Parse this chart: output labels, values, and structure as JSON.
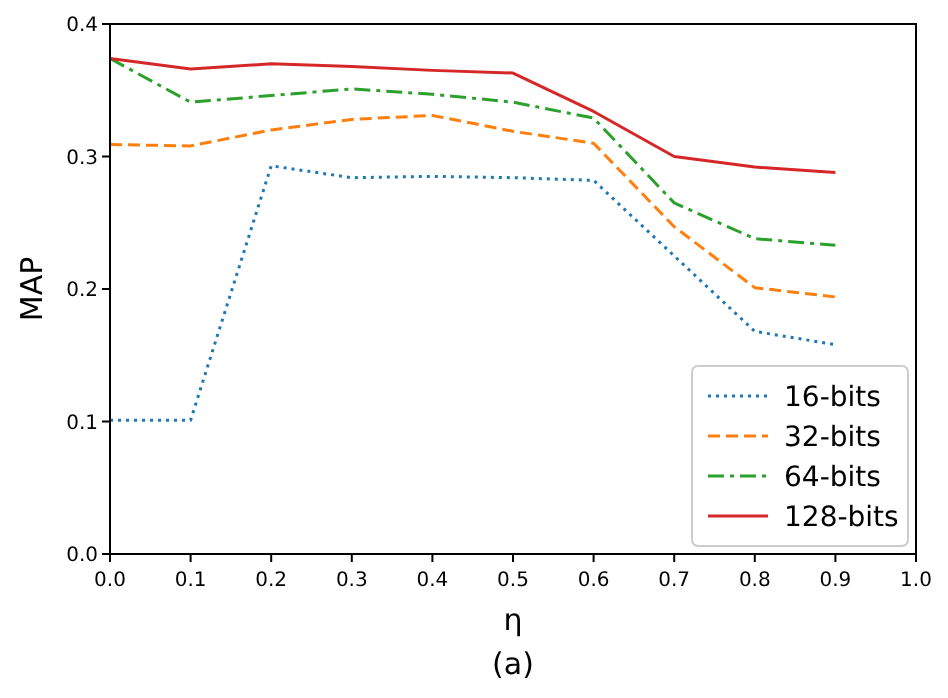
{
  "chart_data": {
    "type": "line",
    "xlabel": "η",
    "ylabel": "MAP",
    "annotations": [
      "(a)"
    ],
    "x": [
      0,
      0.1,
      0.2,
      0.3,
      0.4,
      0.5,
      0.6,
      0.7,
      0.8,
      0.9
    ],
    "xlim": [
      0,
      1
    ],
    "xticks": [
      {
        "value": 0,
        "label": "0.0"
      },
      0.1,
      0.2,
      0.3,
      0.4,
      0.5,
      0.6,
      0.7,
      0.8,
      0.9,
      {
        "value": 1,
        "label": "1.0"
      }
    ],
    "ylim": [
      0,
      0.4
    ],
    "yticks": [
      {
        "value": 0,
        "label": "0.0"
      },
      0.1,
      0.2,
      0.3,
      0.4
    ],
    "legend": "bottom right",
    "grid": false,
    "series": [
      {
        "name": "16-bits",
        "color": "#1f77b4",
        "line_style": "dotted",
        "values": [
          0.101,
          0.101,
          0.293,
          0.284,
          0.285,
          0.284,
          0.282,
          0.225,
          0.168,
          0.158
        ]
      },
      {
        "name": "32-bits",
        "color": "#ff7f0e",
        "line_style": "dashed",
        "values": [
          0.309,
          0.308,
          0.32,
          0.328,
          0.331,
          0.319,
          0.31,
          0.247,
          0.201,
          0.194
        ]
      },
      {
        "name": "64-bits",
        "color": "#2ca02c",
        "line_style": "dashdot",
        "values": [
          0.374,
          0.341,
          0.346,
          0.351,
          0.347,
          0.341,
          0.329,
          0.265,
          0.238,
          0.233
        ]
      },
      {
        "name": "128-bits",
        "color": "#d62728",
        "line_style": "solid",
        "values": [
          0.374,
          0.366,
          0.37,
          0.368,
          0.365,
          0.363,
          0.334,
          0.3,
          0.292,
          0.288
        ]
      }
    ]
  }
}
